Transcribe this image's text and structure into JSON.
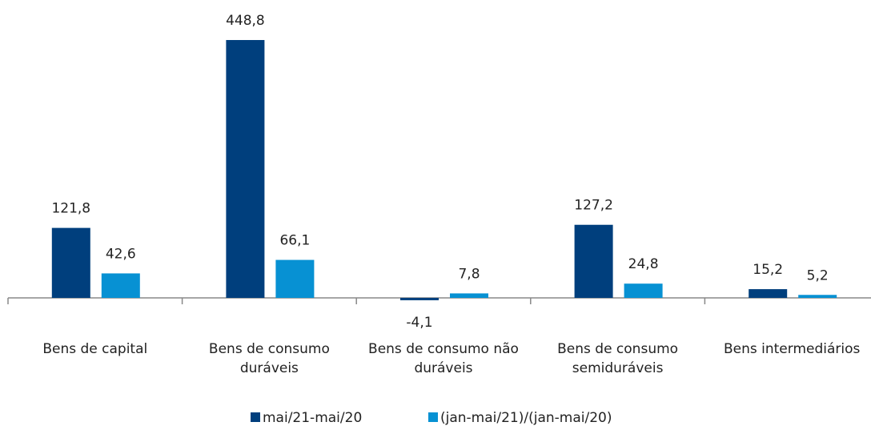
{
  "chart_data": {
    "type": "bar",
    "categories": [
      "Bens de capital",
      "Bens de consumo duráveis",
      "Bens de consumo não duráveis",
      "Bens de consumo semiduráveis",
      "Bens intermediários"
    ],
    "series": [
      {
        "name": "mai/21-mai/20",
        "color": "#003f7d",
        "values": [
          121.8,
          448.8,
          -4.1,
          127.2,
          15.2
        ],
        "value_labels": [
          "121,8",
          "448,8",
          "-4,1",
          "127,2",
          "15,2"
        ]
      },
      {
        "name": "(jan-mai/21)/(jan-mai/20)",
        "color": "#0791d3",
        "values": [
          42.6,
          66.1,
          7.8,
          24.8,
          5.2
        ],
        "value_labels": [
          "42,6",
          "66,1",
          "7,8",
          "24,8",
          "5,2"
        ]
      }
    ],
    "ylim": [
      -20,
      480
    ]
  }
}
